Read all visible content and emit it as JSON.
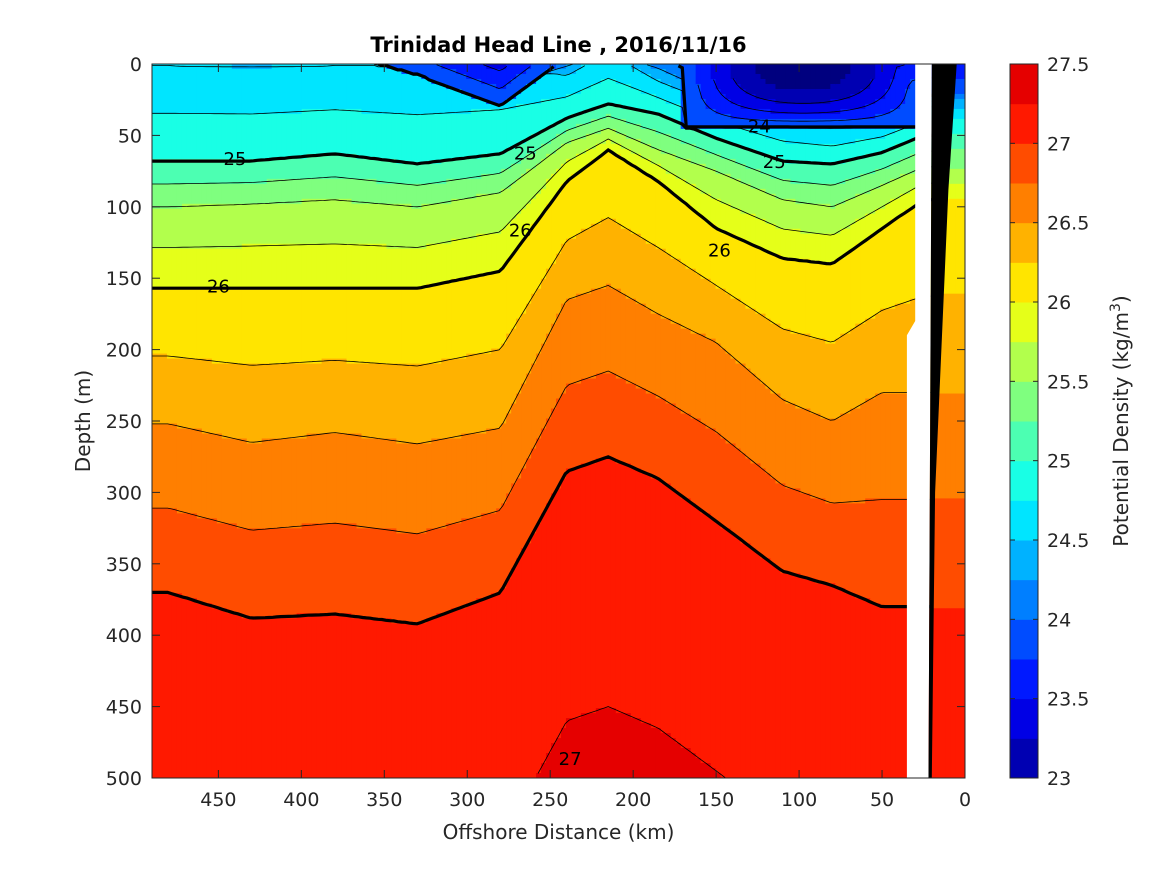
{
  "chart_data": {
    "type": "contour",
    "title": "Trinidad Head Line , 2016/11/16",
    "xlabel": "Offshore Distance (km)",
    "ylabel": "Depth (m)",
    "colorbar_label": "Potential Density (kg/m",
    "colorbar_label_sup": "3",
    "colorbar_label_end": ")",
    "xlim": [
      490,
      0
    ],
    "ylim": [
      0,
      500
    ],
    "x_ticks": [
      450,
      400,
      350,
      300,
      250,
      200,
      150,
      100,
      50,
      0
    ],
    "y_ticks": [
      0,
      50,
      100,
      150,
      200,
      250,
      300,
      350,
      400,
      450,
      500
    ],
    "colorbar_ticks": [
      23,
      23.5,
      24,
      24.5,
      25,
      25.5,
      26,
      26.5,
      27,
      27.5
    ],
    "contour_levels": [
      23,
      23.25,
      23.5,
      23.75,
      24,
      24.25,
      24.5,
      24.75,
      25,
      25.25,
      25.5,
      25.75,
      26,
      26.25,
      26.5,
      26.75,
      27,
      27.25,
      27.5
    ],
    "level_colors": [
      "#00007f",
      "#0000b2",
      "#0000e5",
      "#0019ff",
      "#004cff",
      "#007fff",
      "#00b2ff",
      "#00e5ff",
      "#19ffe5",
      "#4cffb2",
      "#7fff7f",
      "#b2ff4c",
      "#e5ff19",
      "#ffe500",
      "#ffb200",
      "#ff7f00",
      "#ff4c00",
      "#ff1900",
      "#e50000",
      "#b20000"
    ],
    "labeled_contours": [
      {
        "level": 24,
        "label": "24",
        "x": 124,
        "y": 43
      },
      {
        "level": 25,
        "label": "25",
        "x": 440,
        "y": 66
      },
      {
        "level": 25,
        "label": "25",
        "x": 265,
        "y": 62
      },
      {
        "level": 25,
        "label": "25",
        "x": 115,
        "y": 68
      },
      {
        "level": 26,
        "label": "26",
        "x": 450,
        "y": 155
      },
      {
        "level": 26,
        "label": "26",
        "x": 268,
        "y": 116
      },
      {
        "level": 26,
        "label": "26",
        "x": 148,
        "y": 130
      },
      {
        "level": 27,
        "label": "27",
        "x": 238,
        "y": 486
      }
    ],
    "section_profile": [
      {
        "x": 480,
        "d24": -8,
        "d245": 1,
        "d25": 68,
        "d255": 100,
        "d26": 157,
        "d265": 252,
        "d27": 370
      },
      {
        "x": 430,
        "d24": -8,
        "d245": 2,
        "d25": 68,
        "d255": 98,
        "d26": 157,
        "d265": 265,
        "d27": 388
      },
      {
        "x": 380,
        "d24": -8,
        "d245": 1,
        "d25": 63,
        "d255": 95,
        "d26": 157,
        "d265": 258,
        "d27": 385
      },
      {
        "x": 330,
        "d24": 8,
        "d245": 1,
        "d25": 70,
        "d255": 100,
        "d26": 157,
        "d265": 266,
        "d27": 392
      },
      {
        "x": 280,
        "d24": 30,
        "d245": 1,
        "d25": 63,
        "d255": 90,
        "d26": 145,
        "d265": 255,
        "d27": 370
      },
      {
        "x": 240,
        "d24": -5,
        "d245": 8,
        "d25": 38,
        "d255": 55,
        "d26": 82,
        "d265": 165,
        "d27": 285
      },
      {
        "x": 215,
        "d24": -8,
        "d245": -8,
        "d25": 28,
        "d255": 45,
        "d26": 60,
        "d265": 155,
        "d27": 275
      },
      {
        "x": 185,
        "d24": -6,
        "d245": 12,
        "d25": 35,
        "d255": 60,
        "d26": 82,
        "d265": 175,
        "d27": 290
      },
      {
        "x": 150,
        "d24": 15,
        "d245": 28,
        "d25": 52,
        "d255": 75,
        "d26": 115,
        "d265": 195,
        "d27": 320
      },
      {
        "x": 110,
        "d24": 32,
        "d245": 40,
        "d25": 68,
        "d255": 95,
        "d26": 136,
        "d265": 235,
        "d27": 355
      },
      {
        "x": 80,
        "d24": 40,
        "d245": 45,
        "d25": 70,
        "d255": 100,
        "d26": 140,
        "d265": 250,
        "d27": 365
      },
      {
        "x": 50,
        "d24": 30,
        "d245": 40,
        "d25": 62,
        "d255": 85,
        "d26": 115,
        "d265": 230,
        "d27": 380
      },
      {
        "x": 25,
        "d24": 22,
        "d245": 30,
        "d25": 50,
        "d255": 72,
        "d26": 95,
        "d265": 230,
        "d27": 380
      }
    ],
    "core_low": {
      "x1": 170,
      "x2": 25,
      "depth_max": 45,
      "min_value": 23.25
    },
    "deep_high": {
      "x_from": 265,
      "x_to": 165,
      "depth_top": 475,
      "value": 27
    },
    "bottom_bathymetry": [
      [
        30,
        500
      ],
      [
        22,
        500
      ],
      [
        20,
        0
      ],
      [
        5,
        0
      ],
      [
        10,
        88
      ],
      [
        18,
        300
      ],
      [
        20,
        500
      ],
      [
        0,
        500
      ]
    ],
    "white_gap": [
      [
        35,
        500
      ],
      [
        35,
        470
      ],
      [
        35,
        335
      ],
      [
        35,
        190
      ],
      [
        30,
        180
      ],
      [
        30,
        0
      ]
    ]
  }
}
